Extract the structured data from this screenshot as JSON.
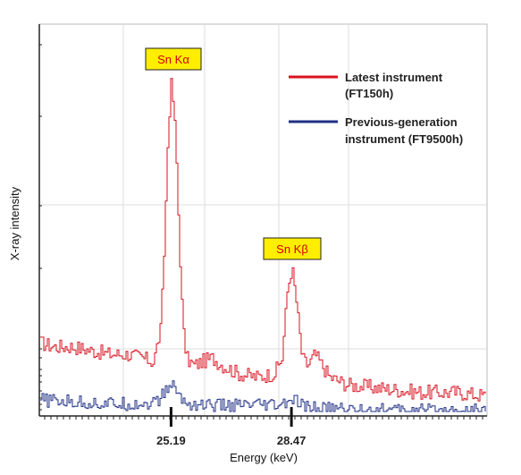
{
  "chart_data": {
    "type": "line",
    "xlabel": "Energy (keV)",
    "ylabel": "X-ray intensity",
    "xlim": [
      21.6,
      33.8
    ],
    "ylim": [
      0,
      100
    ],
    "x_ticks": [
      "25.19",
      "28.47"
    ],
    "x_tick_values": [
      25.19,
      28.47
    ],
    "grid": true,
    "legend_position": "top-right",
    "annotations": [
      {
        "text": "Sn Kα",
        "x": 25.19,
        "y": 90
      },
      {
        "text": "Sn Kβ",
        "x": 28.47,
        "y": 39
      }
    ],
    "colors": {
      "latest": "#d8121f",
      "previous": "#1f2f86",
      "label_box": "#ffee00",
      "grid": "#dddddd"
    },
    "series": [
      {
        "name": "Latest instrument (FT150h)",
        "legend_lines": [
          "Latest instrument",
          " (FT150h)"
        ],
        "x": [
          21.6,
          22.0,
          22.5,
          23.0,
          23.5,
          24.0,
          24.4,
          24.7,
          24.9,
          25.0,
          25.1,
          25.19,
          25.3,
          25.4,
          25.5,
          25.6,
          25.8,
          26.0,
          26.3,
          26.6,
          27.0,
          27.5,
          28.0,
          28.2,
          28.35,
          28.47,
          28.6,
          28.75,
          28.9,
          29.1,
          29.3,
          29.5,
          30.0,
          31.0,
          32.0,
          33.0,
          33.8
        ],
        "values": [
          18,
          17,
          17,
          16,
          15,
          15,
          14,
          13,
          22,
          45,
          75,
          87,
          72,
          45,
          22,
          14,
          12,
          13,
          14,
          12,
          10,
          9,
          10,
          14,
          32,
          38,
          28,
          14,
          12,
          15,
          12,
          9,
          7,
          6,
          5,
          5,
          4
        ]
      },
      {
        "name": "Previous-generation instrument (FT9500h)",
        "legend_lines": [
          "Previous-generation",
          "instrument (FT9500h)"
        ],
        "x": [
          21.6,
          22.5,
          23.5,
          24.4,
          24.8,
          25.0,
          25.1,
          25.19,
          25.3,
          25.4,
          25.6,
          26.5,
          28.2,
          28.35,
          28.47,
          28.6,
          28.8,
          30.0,
          31.0,
          32.0,
          33.8
        ],
        "values": [
          3,
          2.5,
          2,
          2,
          2.5,
          5,
          6.5,
          7,
          6,
          4,
          2,
          1.5,
          1.5,
          2.5,
          3,
          2.5,
          1,
          0.5,
          0.3,
          0.2,
          0.2
        ]
      }
    ]
  }
}
